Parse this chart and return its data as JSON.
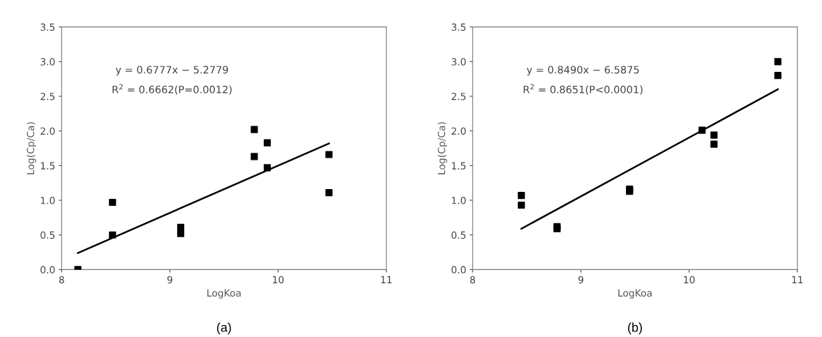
{
  "chart_data": [
    {
      "type": "scatter",
      "title": "(a)",
      "xlabel": "LogKoa",
      "ylabel": "Log(Cp/Ca)",
      "xlim": [
        8,
        11
      ],
      "xticks": [
        8,
        9,
        10,
        11
      ],
      "ylim": [
        0,
        3.5
      ],
      "yticks": [
        {
          "value": 0,
          "label": "0.0"
        },
        0.5,
        {
          "value": 1,
          "label": "1.0"
        },
        1.5,
        {
          "value": 2,
          "label": "2.0"
        },
        2.5,
        {
          "value": 3,
          "label": "3.0"
        },
        3.5
      ],
      "grid": false,
      "legend": false,
      "annotations": [
        "y = 0.6777x − 5.2779",
        "R$^{2}$ = 0.6662(P=0.0012)"
      ],
      "series": [
        {
          "marker": "square",
          "color": "#000000",
          "x": [
            8.15,
            8.47,
            8.47,
            9.1,
            9.1,
            9.78,
            9.78,
            9.9,
            9.9,
            10.47,
            10.47
          ],
          "values": [
            0.0,
            0.97,
            0.5,
            0.61,
            0.52,
            2.02,
            1.63,
            1.83,
            1.47,
            1.66,
            1.11
          ]
        },
        {
          "type": "line",
          "marker": "none",
          "color": "#000000",
          "x": [
            8.15,
            10.47
          ],
          "values": [
            0.24,
            1.82
          ]
        }
      ]
    },
    {
      "type": "scatter",
      "title": "(b)",
      "xlabel": "LogKoa",
      "ylabel": "Log(Cp/Ca)",
      "xlim": [
        8,
        11
      ],
      "xticks": [
        8,
        9,
        10,
        11
      ],
      "ylim": [
        0,
        3.5
      ],
      "yticks": [
        {
          "value": 0,
          "label": "0.0"
        },
        0.5,
        {
          "value": 1,
          "label": "1.0"
        },
        1.5,
        {
          "value": 2,
          "label": "2.0"
        },
        2.5,
        {
          "value": 3,
          "label": "3.0"
        },
        3.5
      ],
      "grid": false,
      "legend": false,
      "annotations": [
        "y = 0.8490x − 6.5875",
        "R$^{2}$ = 0.8651(P<0.0001)"
      ],
      "series": [
        {
          "marker": "square",
          "color": "#000000",
          "x": [
            8.45,
            8.45,
            8.78,
            8.78,
            9.45,
            9.45,
            10.12,
            10.23,
            10.23,
            10.82,
            10.82
          ],
          "values": [
            1.07,
            0.93,
            0.62,
            0.59,
            1.16,
            1.13,
            2.01,
            1.94,
            1.81,
            3.0,
            2.8
          ]
        },
        {
          "type": "line",
          "marker": "none",
          "color": "#000000",
          "x": [
            8.45,
            10.82
          ],
          "values": [
            0.59,
            2.6
          ]
        }
      ]
    }
  ]
}
